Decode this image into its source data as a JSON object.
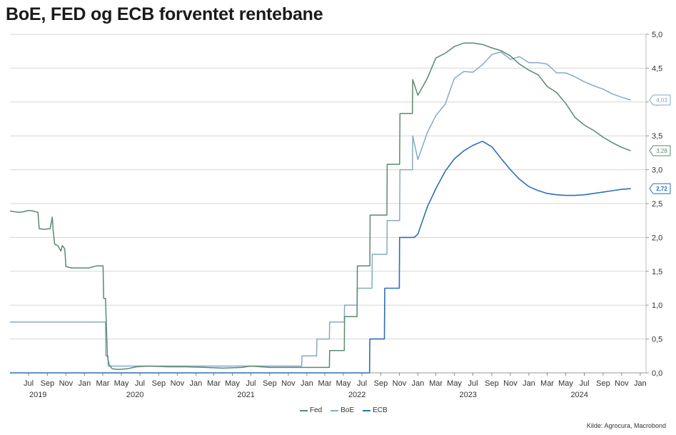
{
  "title": "BoE, FED og ECB forventet rentebane",
  "source": "Kilde: Agrocura, Macrobond",
  "colors": {
    "fed": "#5a8a70",
    "boe": "#86aac4",
    "ecb": "#2e6fb6",
    "grid": "#d6d6d6"
  },
  "chart_data": {
    "type": "line",
    "x_axis": {
      "type": "date",
      "range": [
        "2019-05-01",
        "2025-01-20"
      ],
      "month_ticks": [
        {
          "date": "2019-07-01",
          "label": "Jul"
        },
        {
          "date": "2019-09-01",
          "label": "Sep"
        },
        {
          "date": "2019-11-01",
          "label": "Nov"
        },
        {
          "date": "2020-01-01",
          "label": "Jan"
        },
        {
          "date": "2020-03-01",
          "label": "Mar"
        },
        {
          "date": "2020-05-01",
          "label": "May"
        },
        {
          "date": "2020-07-01",
          "label": "Jul"
        },
        {
          "date": "2020-09-01",
          "label": "Sep"
        },
        {
          "date": "2020-11-01",
          "label": "Nov"
        },
        {
          "date": "2021-01-01",
          "label": "Jan"
        },
        {
          "date": "2021-03-01",
          "label": "Mar"
        },
        {
          "date": "2021-05-01",
          "label": "May"
        },
        {
          "date": "2021-07-01",
          "label": "Jul"
        },
        {
          "date": "2021-09-01",
          "label": "Sep"
        },
        {
          "date": "2021-11-01",
          "label": "Nov"
        },
        {
          "date": "2022-01-01",
          "label": "Jan"
        },
        {
          "date": "2022-03-01",
          "label": "Mar"
        },
        {
          "date": "2022-05-01",
          "label": "May"
        },
        {
          "date": "2022-07-01",
          "label": "Jul"
        },
        {
          "date": "2022-09-01",
          "label": "Sep"
        },
        {
          "date": "2022-11-01",
          "label": "Nov"
        },
        {
          "date": "2023-01-01",
          "label": "Jan"
        },
        {
          "date": "2023-03-01",
          "label": "Mar"
        },
        {
          "date": "2023-05-01",
          "label": "May"
        },
        {
          "date": "2023-07-01",
          "label": "Jul"
        },
        {
          "date": "2023-09-01",
          "label": "Sep"
        },
        {
          "date": "2023-11-01",
          "label": "Nov"
        },
        {
          "date": "2024-01-01",
          "label": "Jan"
        },
        {
          "date": "2024-03-01",
          "label": "Mar"
        },
        {
          "date": "2024-05-01",
          "label": "May"
        },
        {
          "date": "2024-07-01",
          "label": "Jul"
        },
        {
          "date": "2024-09-01",
          "label": "Sep"
        },
        {
          "date": "2024-11-01",
          "label": "Nov"
        },
        {
          "date": "2025-01-01",
          "label": "Jan"
        }
      ],
      "year_labels": [
        {
          "date": "2019-08-01",
          "label": "2019"
        },
        {
          "date": "2020-06-15",
          "label": "2020"
        },
        {
          "date": "2021-06-15",
          "label": "2021"
        },
        {
          "date": "2022-06-15",
          "label": "2022"
        },
        {
          "date": "2023-06-15",
          "label": "2023"
        },
        {
          "date": "2024-06-15",
          "label": "2024"
        }
      ]
    },
    "y_axis": {
      "range": [
        0,
        5
      ],
      "ticks": [
        0,
        0.5,
        1,
        1.5,
        2,
        2.5,
        3,
        3.5,
        4,
        4.5,
        5
      ],
      "tick_labels": [
        "0,0",
        "0,5",
        "1,0",
        "1,5",
        "2,0",
        "2,5",
        "3,0",
        "3,5",
        "4,0",
        "4,5",
        "5,0"
      ],
      "position": "right"
    },
    "grid": true,
    "legend_position": "bottom-center",
    "series": [
      {
        "name": "Fed",
        "key": "fed",
        "end_label": "3,28",
        "points": [
          [
            "2019-05-01",
            2.39
          ],
          [
            "2019-05-15",
            2.38
          ],
          [
            "2019-06-01",
            2.37
          ],
          [
            "2019-06-15",
            2.38
          ],
          [
            "2019-07-01",
            2.4
          ],
          [
            "2019-07-15",
            2.39
          ],
          [
            "2019-08-01",
            2.37
          ],
          [
            "2019-08-05",
            2.13
          ],
          [
            "2019-08-20",
            2.12
          ],
          [
            "2019-09-10",
            2.13
          ],
          [
            "2019-09-17",
            2.3
          ],
          [
            "2019-09-20",
            2.1
          ],
          [
            "2019-09-25",
            1.9
          ],
          [
            "2019-10-05",
            1.88
          ],
          [
            "2019-10-15",
            1.8
          ],
          [
            "2019-10-20",
            1.88
          ],
          [
            "2019-10-28",
            1.83
          ],
          [
            "2019-11-01",
            1.57
          ],
          [
            "2019-11-20",
            1.55
          ],
          [
            "2019-12-15",
            1.55
          ],
          [
            "2020-01-15",
            1.55
          ],
          [
            "2020-02-10",
            1.58
          ],
          [
            "2020-03-02",
            1.58
          ],
          [
            "2020-03-04",
            1.1
          ],
          [
            "2020-03-10",
            1.1
          ],
          [
            "2020-03-16",
            0.25
          ],
          [
            "2020-03-22",
            0.12
          ],
          [
            "2020-04-01",
            0.06
          ],
          [
            "2020-04-20",
            0.05
          ],
          [
            "2020-05-20",
            0.06
          ],
          [
            "2020-06-20",
            0.09
          ],
          [
            "2020-08-01",
            0.1
          ],
          [
            "2020-10-01",
            0.09
          ],
          [
            "2020-12-01",
            0.09
          ],
          [
            "2021-02-01",
            0.08
          ],
          [
            "2021-04-01",
            0.07
          ],
          [
            "2021-06-01",
            0.08
          ],
          [
            "2021-07-01",
            0.1
          ],
          [
            "2021-09-01",
            0.08
          ],
          [
            "2021-12-01",
            0.08
          ],
          [
            "2022-03-16",
            0.08
          ],
          [
            "2022-03-17",
            0.33
          ],
          [
            "2022-05-04",
            0.33
          ],
          [
            "2022-05-05",
            0.83
          ],
          [
            "2022-06-15",
            0.83
          ],
          [
            "2022-06-16",
            1.58
          ],
          [
            "2022-07-27",
            1.58
          ],
          [
            "2022-07-28",
            2.33
          ],
          [
            "2022-09-21",
            2.33
          ],
          [
            "2022-09-22",
            3.08
          ],
          [
            "2022-11-02",
            3.08
          ],
          [
            "2022-11-03",
            3.83
          ],
          [
            "2022-12-14",
            3.83
          ],
          [
            "2022-12-15",
            4.33
          ],
          [
            "2023-01-01",
            4.1
          ],
          [
            "2023-02-01",
            4.35
          ],
          [
            "2023-03-01",
            4.65
          ],
          [
            "2023-04-01",
            4.72
          ],
          [
            "2023-05-01",
            4.82
          ],
          [
            "2023-06-01",
            4.87
          ],
          [
            "2023-07-01",
            4.87
          ],
          [
            "2023-08-01",
            4.85
          ],
          [
            "2023-09-01",
            4.8
          ],
          [
            "2023-10-01",
            4.76
          ],
          [
            "2023-11-01",
            4.68
          ],
          [
            "2023-12-01",
            4.56
          ],
          [
            "2024-01-01",
            4.47
          ],
          [
            "2024-02-01",
            4.4
          ],
          [
            "2024-03-01",
            4.23
          ],
          [
            "2024-04-01",
            4.14
          ],
          [
            "2024-05-01",
            3.98
          ],
          [
            "2024-06-01",
            3.77
          ],
          [
            "2024-07-01",
            3.66
          ],
          [
            "2024-08-01",
            3.58
          ],
          [
            "2024-09-01",
            3.48
          ],
          [
            "2024-10-01",
            3.4
          ],
          [
            "2024-11-01",
            3.33
          ],
          [
            "2024-12-01",
            3.28
          ]
        ]
      },
      {
        "name": "BoE",
        "key": "boe",
        "end_label": "4,03",
        "points": [
          [
            "2019-05-01",
            0.75
          ],
          [
            "2020-03-10",
            0.75
          ],
          [
            "2020-03-11",
            0.25
          ],
          [
            "2020-03-18",
            0.25
          ],
          [
            "2020-03-19",
            0.1
          ],
          [
            "2021-12-15",
            0.1
          ],
          [
            "2021-12-16",
            0.25
          ],
          [
            "2022-02-02",
            0.25
          ],
          [
            "2022-02-03",
            0.5
          ],
          [
            "2022-03-16",
            0.5
          ],
          [
            "2022-03-17",
            0.75
          ],
          [
            "2022-05-04",
            0.75
          ],
          [
            "2022-05-05",
            1.0
          ],
          [
            "2022-06-15",
            1.0
          ],
          [
            "2022-06-16",
            1.25
          ],
          [
            "2022-08-03",
            1.25
          ],
          [
            "2022-08-04",
            1.75
          ],
          [
            "2022-09-21",
            1.75
          ],
          [
            "2022-09-22",
            2.25
          ],
          [
            "2022-11-02",
            2.25
          ],
          [
            "2022-11-03",
            3.0
          ],
          [
            "2022-12-14",
            3.0
          ],
          [
            "2022-12-15",
            3.5
          ],
          [
            "2023-01-01",
            3.15
          ],
          [
            "2023-02-01",
            3.55
          ],
          [
            "2023-03-01",
            3.8
          ],
          [
            "2023-04-01",
            3.97
          ],
          [
            "2023-05-01",
            4.35
          ],
          [
            "2023-06-01",
            4.45
          ],
          [
            "2023-07-01",
            4.44
          ],
          [
            "2023-08-01",
            4.55
          ],
          [
            "2023-09-01",
            4.7
          ],
          [
            "2023-10-01",
            4.74
          ],
          [
            "2023-11-01",
            4.63
          ],
          [
            "2023-12-01",
            4.67
          ],
          [
            "2024-01-01",
            4.58
          ],
          [
            "2024-02-01",
            4.58
          ],
          [
            "2024-03-01",
            4.56
          ],
          [
            "2024-04-01",
            4.43
          ],
          [
            "2024-05-01",
            4.43
          ],
          [
            "2024-06-01",
            4.37
          ],
          [
            "2024-07-01",
            4.3
          ],
          [
            "2024-08-01",
            4.24
          ],
          [
            "2024-09-01",
            4.19
          ],
          [
            "2024-10-01",
            4.12
          ],
          [
            "2024-11-01",
            4.07
          ],
          [
            "2024-12-01",
            4.03
          ]
        ]
      },
      {
        "name": "ECB",
        "key": "ecb",
        "end_label": "2,72",
        "points": [
          [
            "2019-05-01",
            0.0
          ],
          [
            "2022-07-26",
            0.0
          ],
          [
            "2022-07-27",
            0.5
          ],
          [
            "2022-09-13",
            0.5
          ],
          [
            "2022-09-14",
            1.25
          ],
          [
            "2022-11-01",
            1.25
          ],
          [
            "2022-11-02",
            2.0
          ],
          [
            "2022-12-20",
            2.0
          ],
          [
            "2023-01-01",
            2.05
          ],
          [
            "2023-02-01",
            2.45
          ],
          [
            "2023-03-01",
            2.72
          ],
          [
            "2023-04-01",
            2.98
          ],
          [
            "2023-05-01",
            3.16
          ],
          [
            "2023-06-01",
            3.28
          ],
          [
            "2023-07-01",
            3.36
          ],
          [
            "2023-08-01",
            3.42
          ],
          [
            "2023-09-01",
            3.34
          ],
          [
            "2023-10-01",
            3.17
          ],
          [
            "2023-11-01",
            3.0
          ],
          [
            "2023-12-01",
            2.86
          ],
          [
            "2024-01-01",
            2.75
          ],
          [
            "2024-02-01",
            2.69
          ],
          [
            "2024-03-01",
            2.65
          ],
          [
            "2024-04-01",
            2.63
          ],
          [
            "2024-05-01",
            2.62
          ],
          [
            "2024-06-01",
            2.62
          ],
          [
            "2024-07-01",
            2.63
          ],
          [
            "2024-08-01",
            2.65
          ],
          [
            "2024-09-01",
            2.67
          ],
          [
            "2024-10-01",
            2.69
          ],
          [
            "2024-11-01",
            2.71
          ],
          [
            "2024-12-01",
            2.72
          ]
        ]
      }
    ]
  }
}
